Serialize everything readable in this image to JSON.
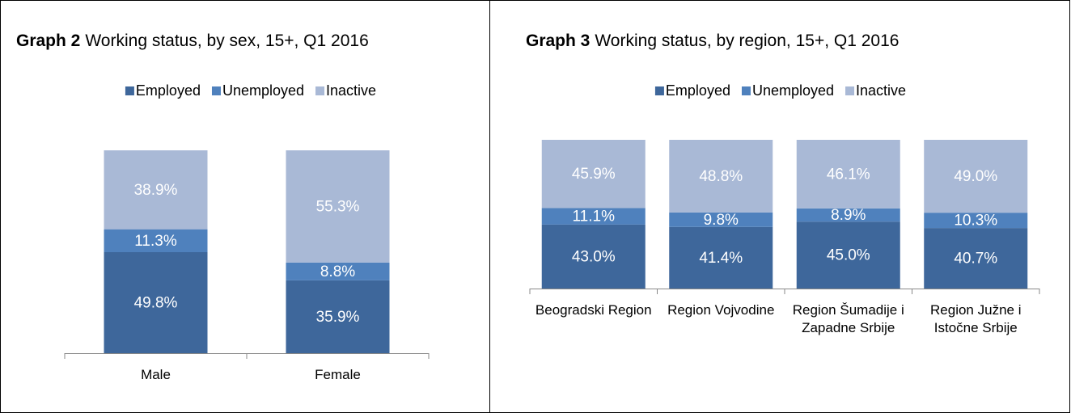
{
  "chart_data": [
    {
      "type": "bar",
      "stacked": true,
      "title_label": "Graph 2",
      "title": "Working status, by sex, 15+, Q1 2016",
      "legend": "top",
      "ylim": [
        0,
        100
      ],
      "categories": [
        "Male",
        "Female"
      ],
      "series": [
        {
          "name": "Employed",
          "color": "#3e679b",
          "values": [
            49.8,
            35.9
          ],
          "value_labels": [
            "49.8%",
            "35.9%"
          ]
        },
        {
          "name": "Unemployed",
          "color": "#4f81bd",
          "values": [
            11.3,
            8.8
          ],
          "value_labels": [
            "11.3%",
            "8.8%"
          ]
        },
        {
          "name": "Inactive",
          "color": "#a9b9d6",
          "values": [
            38.9,
            55.3
          ],
          "value_labels": [
            "38.9%",
            "55.3%"
          ]
        }
      ]
    },
    {
      "type": "bar",
      "stacked": true,
      "title_label": "Graph 3",
      "title": "Working status, by region, 15+, Q1 2016",
      "legend": "top",
      "ylim": [
        0,
        100
      ],
      "categories": [
        "Beogradski Region",
        "Region Vojvodine",
        "Region Šumadije i Zapadne Srbije",
        "Region Južne i Istočne Srbije"
      ],
      "series": [
        {
          "name": "Employed",
          "color": "#3e679b",
          "values": [
            43.0,
            41.4,
            45.0,
            40.7
          ],
          "value_labels": [
            "43.0%",
            "41.4%",
            "45.0%",
            "40.7%"
          ]
        },
        {
          "name": "Unemployed",
          "color": "#4f81bd",
          "values": [
            11.1,
            9.8,
            8.9,
            10.3
          ],
          "value_labels": [
            "11.1%",
            "9.8%",
            "8.9%",
            "10.3%"
          ]
        },
        {
          "name": "Inactive",
          "color": "#a9b9d6",
          "values": [
            45.9,
            48.8,
            46.1,
            49.0
          ],
          "value_labels": [
            "45.9%",
            "48.8%",
            "46.1%",
            "49.0%"
          ]
        }
      ]
    }
  ]
}
